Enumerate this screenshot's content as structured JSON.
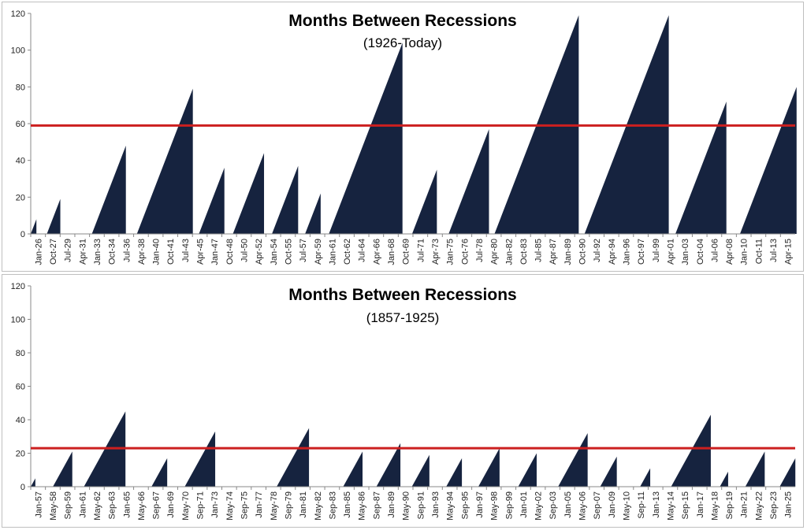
{
  "chart_data": [
    {
      "type": "area",
      "title": "Months Between Recessions",
      "subtitle": "(1926-Today)",
      "ylim": [
        0,
        120
      ],
      "yticks": [
        0,
        20,
        40,
        60,
        80,
        100,
        120
      ],
      "xlim": [
        1926.0,
        2016.0
      ],
      "x_tick_labels": [
        "Jan-26",
        "Oct-27",
        "Jul-29",
        "Apr-31",
        "Jan-33",
        "Oct-34",
        "Jul-36",
        "Apr-38",
        "Jan-40",
        "Oct-41",
        "Jul-43",
        "Apr-45",
        "Jan-47",
        "Oct-48",
        "Jul-50",
        "Apr-52",
        "Jan-54",
        "Oct-55",
        "Jul-57",
        "Apr-59",
        "Jan-61",
        "Oct-62",
        "Jul-64",
        "Apr-66",
        "Jan-68",
        "Oct-69",
        "Jul-71",
        "Apr-73",
        "Jan-75",
        "Oct-76",
        "Jul-78",
        "Apr-80",
        "Jan-82",
        "Oct-83",
        "Jul-85",
        "Apr-87",
        "Jan-89",
        "Oct-90",
        "Jul-92",
        "Apr-94",
        "Jan-96",
        "Oct-97",
        "Jul-99",
        "Apr-01",
        "Jan-03",
        "Oct-04",
        "Jul-06",
        "Apr-08",
        "Jan-10",
        "Oct-11",
        "Jul-13",
        "Apr-15"
      ],
      "expansions": [
        {
          "start": 1926.0,
          "peak": 8
        },
        {
          "start": 1927.9,
          "peak": 19
        },
        {
          "start": 1933.2,
          "peak": 48
        },
        {
          "start": 1938.5,
          "peak": 79
        },
        {
          "start": 1945.8,
          "peak": 36
        },
        {
          "start": 1949.8,
          "peak": 44
        },
        {
          "start": 1954.4,
          "peak": 37
        },
        {
          "start": 1958.3,
          "peak": 22
        },
        {
          "start": 1961.1,
          "peak": 104
        },
        {
          "start": 1970.9,
          "peak": 35
        },
        {
          "start": 1975.2,
          "peak": 57
        },
        {
          "start": 1980.6,
          "peak": 119
        },
        {
          "start": 1991.2,
          "peak": 119
        },
        {
          "start": 2001.9,
          "peak": 72
        },
        {
          "start": 2009.5,
          "peak": 80
        }
      ],
      "average_line": 59,
      "colors": {
        "fill": "#16233f",
        "average": "#cc1f1f",
        "axis": "#888888"
      }
    },
    {
      "type": "area",
      "title": "Months Between Recessions",
      "subtitle": "(1857-1925)",
      "ylim": [
        0,
        120
      ],
      "yticks": [
        0,
        20,
        40,
        60,
        80,
        100,
        120
      ],
      "xlim": [
        1857.0,
        1926.0
      ],
      "x_tick_labels": [
        "Jan-57",
        "May-58",
        "Sep-59",
        "Jan-61",
        "May-62",
        "Sep-63",
        "Jan-65",
        "May-66",
        "Sep-67",
        "Jan-69",
        "May-70",
        "Sep-71",
        "Jan-73",
        "May-74",
        "Sep-75",
        "Jan-77",
        "May-78",
        "Sep-79",
        "Jan-81",
        "May-82",
        "Sep-83",
        "Jan-85",
        "May-86",
        "Sep-87",
        "Jan-89",
        "May-90",
        "Sep-91",
        "Jan-93",
        "May-94",
        "Sep-95",
        "Jan-97",
        "May-98",
        "Sep-99",
        "Jan-01",
        "May-02",
        "Sep-03",
        "Jan-05",
        "May-06",
        "Sep-07",
        "Jan-09",
        "May-10",
        "Sep-11",
        "Jan-13",
        "May-14",
        "Sep-15",
        "Jan-17",
        "May-18",
        "Sep-19",
        "Jan-21",
        "May-22",
        "Sep-23",
        "Jan-25"
      ],
      "expansions": [
        {
          "start": 1857.0,
          "peak": 5
        },
        {
          "start": 1859.0,
          "peak": 21
        },
        {
          "start": 1861.8,
          "peak": 45
        },
        {
          "start": 1867.9,
          "peak": 17
        },
        {
          "start": 1870.9,
          "peak": 33
        },
        {
          "start": 1879.2,
          "peak": 35
        },
        {
          "start": 1885.2,
          "peak": 21
        },
        {
          "start": 1888.2,
          "peak": 26
        },
        {
          "start": 1891.4,
          "peak": 19
        },
        {
          "start": 1894.5,
          "peak": 17
        },
        {
          "start": 1897.4,
          "peak": 23
        },
        {
          "start": 1901.0,
          "peak": 20
        },
        {
          "start": 1904.6,
          "peak": 32
        },
        {
          "start": 1908.4,
          "peak": 18
        },
        {
          "start": 1912.0,
          "peak": 11
        },
        {
          "start": 1914.8,
          "peak": 43
        },
        {
          "start": 1919.2,
          "peak": 9
        },
        {
          "start": 1921.5,
          "peak": 21
        },
        {
          "start": 1924.6,
          "peak": 17
        }
      ],
      "average_line": 23,
      "colors": {
        "fill": "#16233f",
        "average": "#cc1f1f",
        "axis": "#888888"
      }
    }
  ]
}
